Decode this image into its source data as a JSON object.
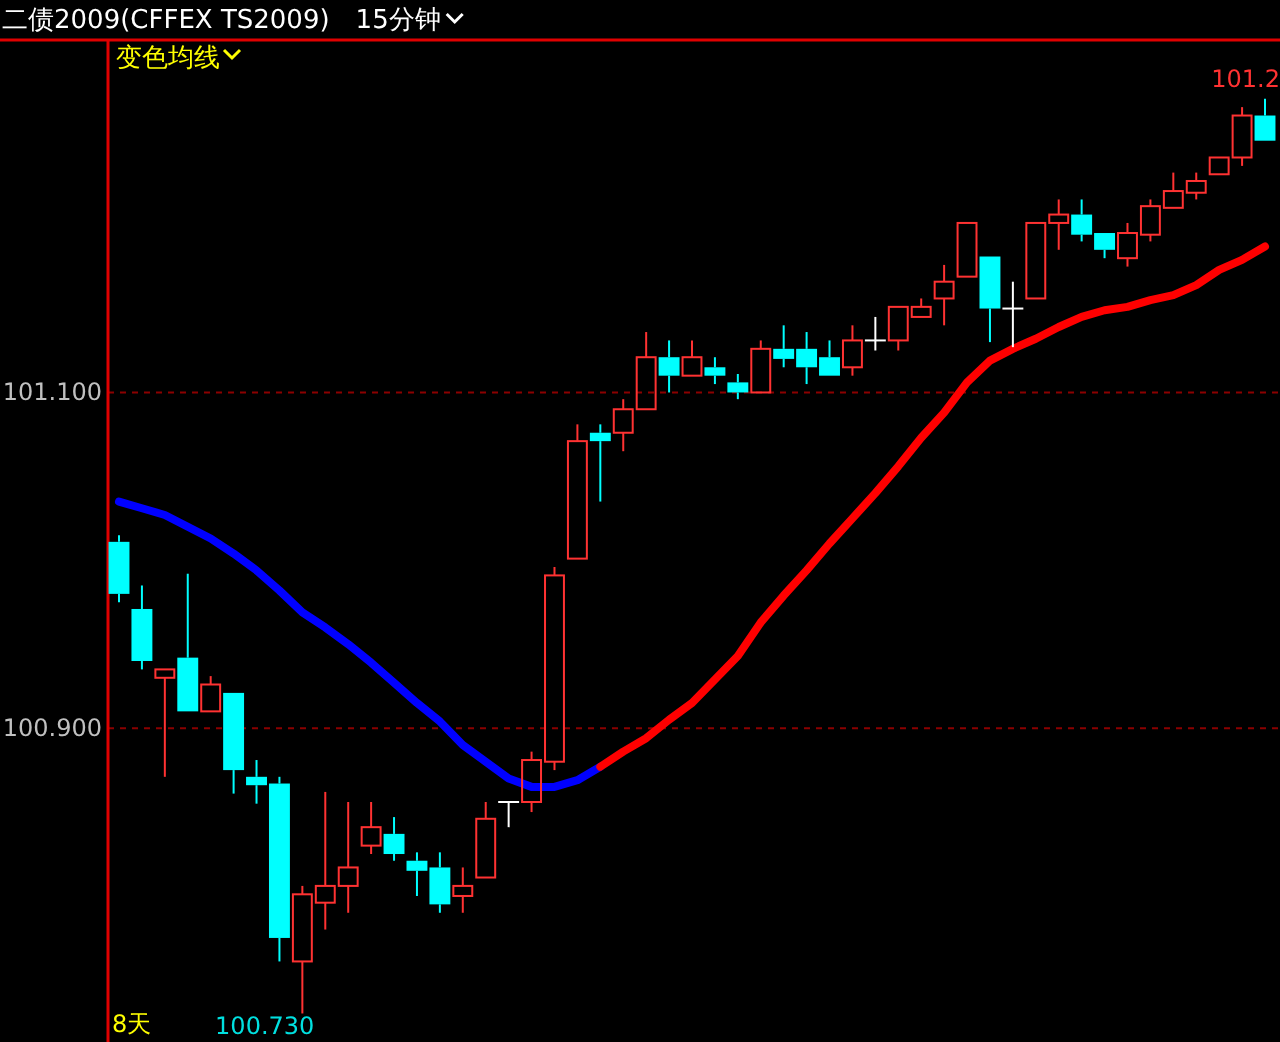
{
  "chart_data": {
    "type": "candlestick",
    "title": "二债2009(CFFEX TS2009)",
    "subtitle": "15分钟",
    "legend_title": "变色均线",
    "categories": [
      null,
      null,
      null,
      null,
      null,
      null,
      null,
      null,
      null,
      null,
      null,
      null,
      null,
      null,
      null,
      null,
      null,
      null,
      null,
      null,
      null,
      null,
      null,
      null,
      null,
      null,
      null,
      null,
      null,
      null,
      null,
      null,
      null,
      null,
      null,
      null,
      null,
      null,
      null,
      null,
      null,
      null,
      null,
      null,
      null,
      null,
      null,
      null,
      null,
      null,
      null
    ],
    "ohlc": [
      [
        101.011,
        101.015,
        100.975,
        100.98
      ],
      [
        100.971,
        100.985,
        100.935,
        100.94
      ],
      [
        100.93,
        100.935,
        100.871,
        100.935
      ],
      [
        100.942,
        100.992,
        100.91,
        100.91
      ],
      [
        100.91,
        100.931,
        100.91,
        100.926
      ],
      [
        100.921,
        100.921,
        100.861,
        100.875
      ],
      [
        100.871,
        100.881,
        100.855,
        100.866
      ],
      [
        100.867,
        100.871,
        100.761,
        100.775
      ],
      [
        100.761,
        100.806,
        100.73,
        100.801
      ],
      [
        100.796,
        100.862,
        100.78,
        100.806
      ],
      [
        100.806,
        100.856,
        100.79,
        100.817
      ],
      [
        100.83,
        100.856,
        100.825,
        100.841
      ],
      [
        100.837,
        100.847,
        100.821,
        100.825
      ],
      [
        100.821,
        100.826,
        100.8,
        100.815
      ],
      [
        100.817,
        100.826,
        100.79,
        100.795
      ],
      [
        100.8,
        100.817,
        100.79,
        100.806
      ],
      [
        100.811,
        100.856,
        100.811,
        100.846
      ],
      [
        100.856,
        100.856,
        100.841,
        100.856
      ],
      [
        100.856,
        100.886,
        100.85,
        100.881
      ],
      [
        100.88,
        100.996,
        100.875,
        100.991
      ],
      [
        101.001,
        101.081,
        101.001,
        101.071
      ],
      [
        101.076,
        101.081,
        101.035,
        101.071
      ],
      [
        101.076,
        101.096,
        101.065,
        101.09
      ],
      [
        101.09,
        101.136,
        101.09,
        101.121
      ],
      [
        101.121,
        101.131,
        101.1,
        101.11
      ],
      [
        101.11,
        101.131,
        101.11,
        101.121
      ],
      [
        101.115,
        101.121,
        101.105,
        101.11
      ],
      [
        101.106,
        101.111,
        101.096,
        101.1
      ],
      [
        101.1,
        101.131,
        101.1,
        101.126
      ],
      [
        101.126,
        101.14,
        101.115,
        101.12
      ],
      [
        101.126,
        101.136,
        101.105,
        101.115
      ],
      [
        101.121,
        101.131,
        101.11,
        101.11
      ],
      [
        101.115,
        101.14,
        101.11,
        101.131
      ],
      [
        101.131,
        101.145,
        101.125,
        101.131
      ],
      [
        101.131,
        101.151,
        101.125,
        101.151
      ],
      [
        101.145,
        101.156,
        101.145,
        101.151
      ],
      [
        101.156,
        101.176,
        101.14,
        101.166
      ],
      [
        101.169,
        101.201,
        101.169,
        101.201
      ],
      [
        101.181,
        101.181,
        101.13,
        101.15
      ],
      [
        101.15,
        101.166,
        101.127,
        101.15
      ],
      [
        101.156,
        101.201,
        101.156,
        101.201
      ],
      [
        101.201,
        101.215,
        101.185,
        101.206
      ],
      [
        101.206,
        101.215,
        101.19,
        101.194
      ],
      [
        101.195,
        101.195,
        101.18,
        101.185
      ],
      [
        101.18,
        101.201,
        101.175,
        101.195
      ],
      [
        101.194,
        101.215,
        101.19,
        101.211
      ],
      [
        101.21,
        101.231,
        101.21,
        101.22
      ],
      [
        101.219,
        101.231,
        101.215,
        101.226
      ],
      [
        101.23,
        101.24,
        101.23,
        101.24
      ],
      [
        101.24,
        101.27,
        101.235,
        101.265
      ],
      [
        101.265,
        101.275,
        101.25,
        101.25
      ]
    ],
    "colors": [
      "#00ffff",
      "#00ffff",
      "#ff3232",
      "#00ffff",
      "#ff3232",
      "#00ffff",
      "#00ffff",
      "#00ffff",
      "#ff3232",
      "#ff3232",
      "#ff3232",
      "#ff3232",
      "#00ffff",
      "#00ffff",
      "#00ffff",
      "#ff3232",
      "#ff3232",
      "#ffffff",
      "#ff3232",
      "#ff3232",
      "#ff3232",
      "#00ffff",
      "#ff3232",
      "#ff3232",
      "#00ffff",
      "#ff3232",
      "#00ffff",
      "#00ffff",
      "#ff3232",
      "#00ffff",
      "#00ffff",
      "#00ffff",
      "#ff3232",
      "#ffffff",
      "#ff3232",
      "#ff3232",
      "#ff3232",
      "#ff3232",
      "#00ffff",
      "#ffffff",
      "#ff3232",
      "#ff3232",
      "#00ffff",
      "#00ffff",
      "#ff3232",
      "#ff3232",
      "#ff3232",
      "#ff3232",
      "#ff3232",
      "#ff3232",
      "#00ffff"
    ],
    "series": [
      {
        "type": "line",
        "color": "#0000ff",
        "values": [
          101.035,
          101.031,
          101.027,
          101.02,
          101.013,
          101.004,
          100.994,
          100.982,
          100.969,
          100.96,
          100.95,
          100.939,
          100.927,
          100.915,
          100.904,
          100.89,
          100.88,
          100.87,
          100.865,
          100.865,
          100.869,
          100.877,
          null,
          null,
          null,
          null,
          null,
          null,
          null,
          null,
          null,
          null,
          null,
          null,
          null,
          null,
          null,
          null,
          null,
          null,
          null,
          null,
          null,
          null,
          null,
          null,
          null,
          null,
          null,
          null,
          null
        ]
      },
      {
        "type": "line",
        "color": "#ff0000",
        "values": [
          null,
          null,
          null,
          null,
          null,
          null,
          null,
          null,
          null,
          null,
          null,
          null,
          null,
          null,
          null,
          null,
          null,
          null,
          null,
          null,
          null,
          100.877,
          100.886,
          100.894,
          100.905,
          100.915,
          100.929,
          100.943,
          100.963,
          100.979,
          100.994,
          101.01,
          101.025,
          101.04,
          101.056,
          101.073,
          101.088,
          101.106,
          101.119,
          101.126,
          101.132,
          101.139,
          101.145,
          101.149,
          101.151,
          101.155,
          101.158,
          101.164,
          101.173,
          101.179,
          101.187
        ]
      }
    ],
    "ylim": [
      100.713,
      101.31
    ],
    "yticks": [
      {
        "value": 100.9,
        "label": "100.900"
      },
      {
        "value": 101.1,
        "label": "101.100"
      }
    ],
    "grid": "y",
    "tick_labels": "y",
    "annotations": [
      {
        "text": "101.2",
        "y": 101.275
      },
      "100.730",
      "8天"
    ]
  }
}
